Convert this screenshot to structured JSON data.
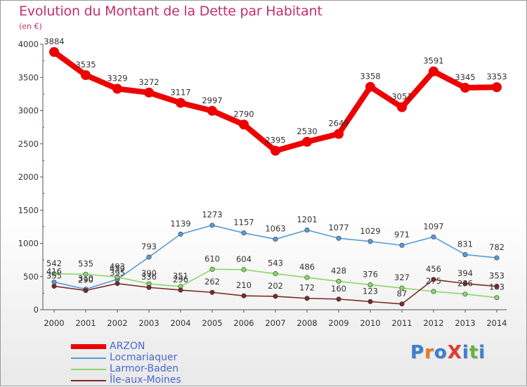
{
  "title": "Evolution du Montant de la Dette par Habitant",
  "unit_label": "(en €)",
  "logo": {
    "text": "ProXiti",
    "letters": [
      {
        "ch": "P",
        "color": "#3a7fd0"
      },
      {
        "ch": "r",
        "color": "#e87722"
      },
      {
        "ch": "o",
        "color": "#3a7fd0"
      },
      {
        "ch": "X",
        "color": "#e23b2e"
      },
      {
        "ch": "i",
        "color": "#3a7fd0"
      },
      {
        "ch": "t",
        "color": "#6ab23a"
      },
      {
        "ch": "i",
        "color": "#3a7fd0"
      }
    ]
  },
  "chart_data": {
    "type": "line",
    "title": "Evolution du Montant de la Dette par Habitant",
    "ylabel": "(en €)",
    "xlabel": "",
    "x": [
      "2000",
      "2001",
      "2002",
      "2003",
      "2004",
      "2005",
      "2006",
      "2007",
      "2008",
      "2009",
      "2010",
      "2011",
      "2012",
      "2013",
      "2014"
    ],
    "ylim": [
      0,
      4000
    ],
    "yticks": [
      "0",
      "500",
      "1000",
      "1500",
      "2000",
      "2500",
      "3000",
      "3500",
      "4000"
    ],
    "grid": false,
    "legend_position": "bottom-left",
    "series": [
      {
        "name": "ARZON",
        "color": "#ee0000",
        "values": [
          3884,
          3535,
          3329,
          3272,
          3117,
          2997,
          2790,
          2395,
          2530,
          2649,
          3358,
          3051,
          3591,
          3345,
          3353
        ],
        "labels": [
          "3884",
          "3535",
          "3329",
          "3272",
          "3117",
          "2997",
          "2790",
          "2395",
          "2530",
          "2649",
          "3358",
          "3051",
          "3591",
          "3345",
          "3353"
        ]
      },
      {
        "name": "Locmariaquer",
        "color": "#5a9bd5",
        "values": [
          416,
          310,
          459,
          793,
          1139,
          1273,
          1157,
          1063,
          1201,
          1077,
          1029,
          971,
          1097,
          831,
          782
        ],
        "labels": [
          "416",
          "310",
          "459",
          "793",
          "1139",
          "1273",
          "1157",
          "1063",
          "1201",
          "1077",
          "1029",
          "971",
          "1097",
          "831",
          "782"
        ]
      },
      {
        "name": "Larmor-Baden",
        "color": "#88d86a",
        "values": [
          542,
          535,
          493,
          390,
          351,
          610,
          604,
          543,
          486,
          428,
          376,
          327,
          275,
          236,
          183
        ],
        "labels": [
          "542",
          "535",
          "493",
          "390",
          "351",
          "610",
          "604",
          "543",
          "486",
          "428",
          "376",
          "327",
          "275",
          "236",
          "183"
        ]
      },
      {
        "name": "Île-aux-Moines",
        "color": "#7a2a2a",
        "values": [
          355,
          290,
          395,
          336,
          296,
          262,
          210,
          202,
          172,
          160,
          123,
          87,
          456,
          394,
          353
        ],
        "labels": [
          "355",
          "290",
          "395",
          "336",
          "296",
          "262",
          "210",
          "202",
          "172",
          "160",
          "123",
          "87",
          "456",
          "394",
          "353"
        ]
      }
    ]
  }
}
